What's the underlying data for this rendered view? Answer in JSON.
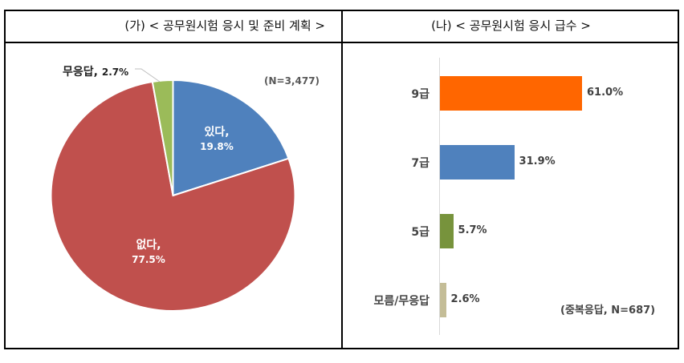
{
  "panel_left": {
    "title": "(가) < 공무원시험  응시 및 준비  계획 >",
    "note": "(N=3,477)"
  },
  "panel_right": {
    "title": "(나) < 공무원시험  응시  급수 >",
    "note": "(중복응답, N=687)"
  },
  "chart_data": [
    {
      "type": "pie",
      "title": "(가) < 공무원시험 응시 및 준비 계획 >",
      "annotation": "(N=3,477)",
      "categories": [
        "있다",
        "없다",
        "무응답"
      ],
      "values": [
        19.8,
        77.5,
        2.7
      ],
      "labels": [
        {
          "name": "있다,",
          "value": "19.8%"
        },
        {
          "name": "없다,",
          "value": "77.5%"
        },
        {
          "name": "무응답,",
          "value": "2.7%"
        }
      ],
      "colors": [
        "#4F81BD",
        "#C0504D",
        "#9BBB59"
      ],
      "legend": "none"
    },
    {
      "type": "bar",
      "orientation": "horizontal",
      "title": "(나) < 공무원시험 응시 급수 >",
      "annotation": "(중복응답, N=687)",
      "categories": [
        "9급",
        "7급",
        "5급",
        "모름/무응답"
      ],
      "values": [
        61.0,
        31.9,
        5.7,
        2.6
      ],
      "value_labels": [
        "61.0%",
        "31.9%",
        "5.7%",
        "2.6%"
      ],
      "colors": [
        "#FF6600",
        "#4F81BD",
        "#77933C",
        "#C4BD97"
      ],
      "xlabel": "",
      "ylabel": "",
      "grid": false,
      "legend": "none"
    }
  ]
}
